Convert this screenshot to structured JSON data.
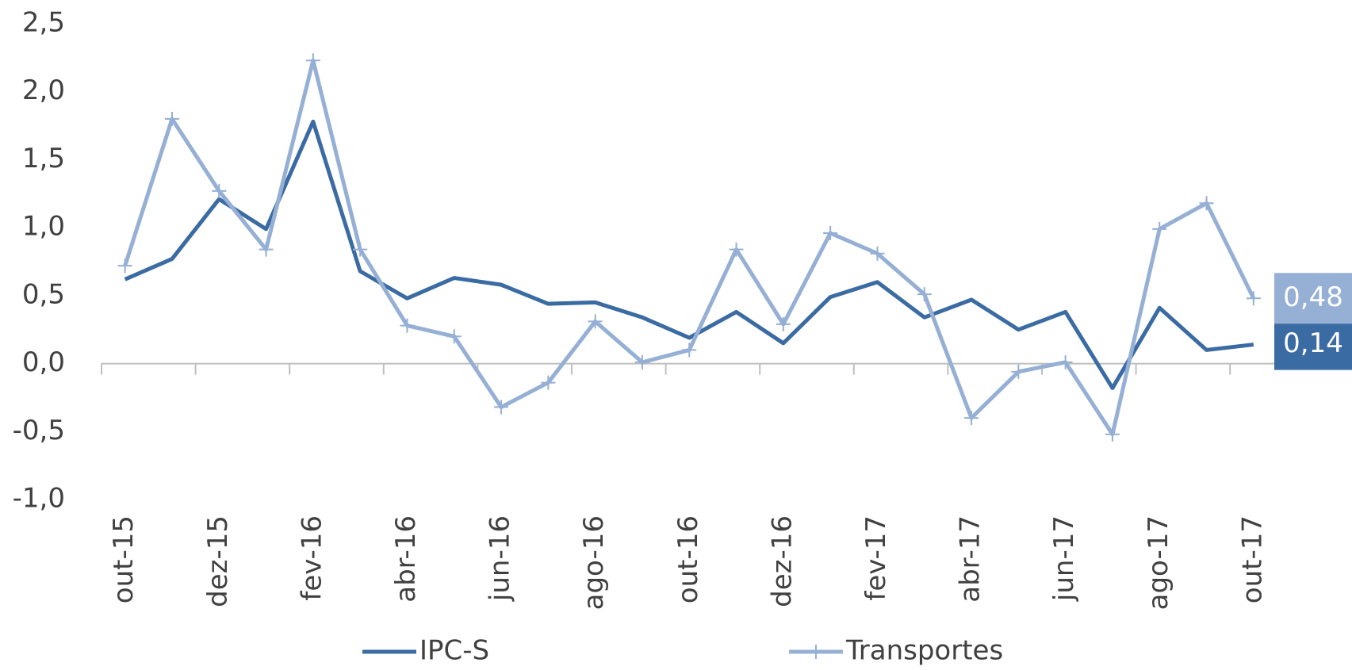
{
  "chart_data": {
    "type": "line",
    "categories": [
      "out-15",
      null,
      "dez-15",
      null,
      "fev-16",
      null,
      "abr-16",
      null,
      "jun-16",
      null,
      "ago-16",
      null,
      "out-16",
      null,
      "dez-16",
      null,
      "fev-17",
      null,
      "abr-17",
      null,
      "jun-17",
      null,
      "ago-17",
      null,
      "out-17"
    ],
    "series": [
      {
        "name": "IPC-S",
        "color": "#3b6ba3",
        "marker": "none",
        "values": [
          0.62,
          0.77,
          1.21,
          0.99,
          1.78,
          0.68,
          0.48,
          0.63,
          0.58,
          0.44,
          0.45,
          0.34,
          0.19,
          0.38,
          0.15,
          0.49,
          0.6,
          0.34,
          0.47,
          0.25,
          0.38,
          -0.18,
          0.41,
          0.1,
          0.14
        ],
        "value_labels": [
          null,
          null,
          null,
          null,
          null,
          null,
          null,
          null,
          null,
          null,
          null,
          null,
          null,
          null,
          null,
          null,
          null,
          null,
          null,
          null,
          null,
          null,
          null,
          null,
          "0,14"
        ]
      },
      {
        "name": "Transportes",
        "color": "#95afd5",
        "marker": "plus",
        "values": [
          0.72,
          1.8,
          1.27,
          0.84,
          2.23,
          0.84,
          0.28,
          0.2,
          -0.32,
          -0.14,
          0.31,
          0.01,
          0.1,
          0.84,
          0.29,
          0.96,
          0.81,
          0.51,
          -0.4,
          -0.06,
          0.01,
          -0.52,
          0.99,
          1.18,
          0.48
        ],
        "value_labels": [
          null,
          null,
          null,
          null,
          null,
          null,
          null,
          null,
          null,
          null,
          null,
          null,
          null,
          null,
          null,
          null,
          null,
          null,
          null,
          null,
          null,
          null,
          null,
          null,
          "0,48"
        ]
      }
    ],
    "ylim": [
      -1,
      2.5
    ],
    "yticks": [
      {
        "value": -1,
        "label": "-1,0"
      },
      {
        "value": -0.5,
        "label": "-0,5"
      },
      {
        "value": 0,
        "label": "0,0"
      },
      {
        "value": 0.5,
        "label": "0,5"
      },
      {
        "value": 1,
        "label": "1,0"
      },
      {
        "value": 1.5,
        "label": "1,5"
      },
      {
        "value": 2,
        "label": "2,0"
      },
      {
        "value": 2.5,
        "label": "2,5"
      }
    ],
    "grid": false,
    "legend": "bottom"
  }
}
